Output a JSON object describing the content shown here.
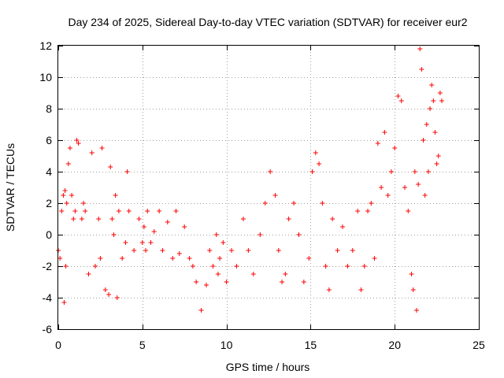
{
  "chart_data": {
    "type": "scatter",
    "title": "Day 234 of 2025, Sidereal Day-to-day VTEC variation (SDTVAR) for receiver eur2",
    "xlabel": "GPS time / hours",
    "ylabel": "SDTVAR / TECUs",
    "xlim": [
      0,
      25
    ],
    "ylim": [
      -6,
      12
    ],
    "xticks": [
      0,
      5,
      10,
      15,
      20,
      25
    ],
    "yticks": [
      -6,
      -4,
      -2,
      0,
      2,
      4,
      6,
      8,
      10,
      12
    ],
    "xtick_labels": [
      "0",
      "5",
      "10",
      "15",
      "20",
      "25"
    ],
    "ytick_labels": [
      "-6",
      "-4",
      "-2",
      "0",
      "2",
      "4",
      "6",
      "8",
      "10",
      "12"
    ],
    "grid": true,
    "marker": "+",
    "series_color": "#ff0000",
    "series": [
      {
        "name": "SDTVAR",
        "x": [
          0.0,
          0.1,
          0.2,
          0.3,
          0.35,
          0.4,
          0.45,
          0.5,
          0.6,
          0.7,
          0.8,
          0.9,
          1.0,
          1.1,
          1.2,
          1.4,
          1.5,
          1.6,
          1.8,
          2.0,
          2.2,
          2.4,
          2.5,
          2.6,
          2.8,
          3.0,
          3.1,
          3.2,
          3.3,
          3.4,
          3.5,
          3.6,
          3.8,
          4.0,
          4.1,
          4.2,
          4.5,
          4.8,
          5.0,
          5.1,
          5.2,
          5.3,
          5.5,
          5.7,
          6.0,
          6.2,
          6.5,
          6.8,
          7.0,
          7.2,
          7.5,
          7.8,
          8.0,
          8.2,
          8.5,
          8.8,
          9.0,
          9.2,
          9.4,
          9.5,
          9.6,
          9.8,
          10.0,
          10.3,
          10.6,
          11.0,
          11.3,
          11.6,
          12.0,
          12.3,
          12.6,
          12.9,
          13.1,
          13.3,
          13.5,
          13.7,
          14.0,
          14.3,
          14.6,
          14.9,
          15.1,
          15.3,
          15.5,
          15.7,
          15.9,
          16.1,
          16.3,
          16.6,
          16.9,
          17.2,
          17.5,
          17.8,
          18.0,
          18.2,
          18.4,
          18.6,
          18.8,
          19.0,
          19.2,
          19.4,
          19.6,
          19.8,
          20.0,
          20.2,
          20.4,
          20.6,
          20.8,
          21.0,
          21.1,
          21.2,
          21.3,
          21.4,
          21.5,
          21.6,
          21.7,
          21.8,
          21.9,
          22.0,
          22.1,
          22.2,
          22.3,
          22.4,
          22.5,
          22.6,
          22.7,
          22.8
        ],
        "y": [
          -1.0,
          -1.5,
          1.5,
          2.5,
          -4.3,
          2.8,
          -2.0,
          2.0,
          4.5,
          5.5,
          2.5,
          1.0,
          1.5,
          6.0,
          5.8,
          1.0,
          2.0,
          1.5,
          -2.5,
          5.2,
          -2.0,
          1.0,
          -1.5,
          5.5,
          -3.5,
          -3.8,
          4.3,
          1.0,
          0.0,
          2.5,
          -4.0,
          1.5,
          -1.5,
          -0.5,
          4.0,
          1.5,
          -1.0,
          1.0,
          -0.5,
          0.5,
          -1.0,
          1.5,
          -0.5,
          0.2,
          1.5,
          -1.0,
          0.8,
          -1.5,
          1.5,
          -1.2,
          0.5,
          -1.5,
          -2.0,
          -3.0,
          -4.8,
          -3.2,
          -1.0,
          -2.0,
          0.0,
          -2.5,
          -1.5,
          -0.5,
          -3.0,
          -1.0,
          -2.0,
          1.0,
          -1.0,
          -2.5,
          0.0,
          2.0,
          4.0,
          2.5,
          -1.0,
          -3.0,
          -2.5,
          1.0,
          2.0,
          0.0,
          -3.0,
          -1.5,
          4.0,
          5.2,
          4.5,
          2.0,
          -2.0,
          -3.5,
          1.0,
          -1.0,
          0.5,
          -2.0,
          -1.0,
          1.5,
          -3.5,
          -2.0,
          1.5,
          2.0,
          -1.5,
          5.8,
          3.0,
          6.5,
          2.5,
          4.0,
          5.5,
          8.8,
          8.5,
          3.0,
          1.5,
          -2.5,
          -3.5,
          4.0,
          -4.8,
          3.2,
          11.8,
          10.5,
          6.0,
          2.5,
          7.0,
          4.0,
          8.0,
          9.5,
          8.5,
          6.5,
          4.5,
          5.0,
          9.0,
          8.5
        ]
      }
    ]
  }
}
